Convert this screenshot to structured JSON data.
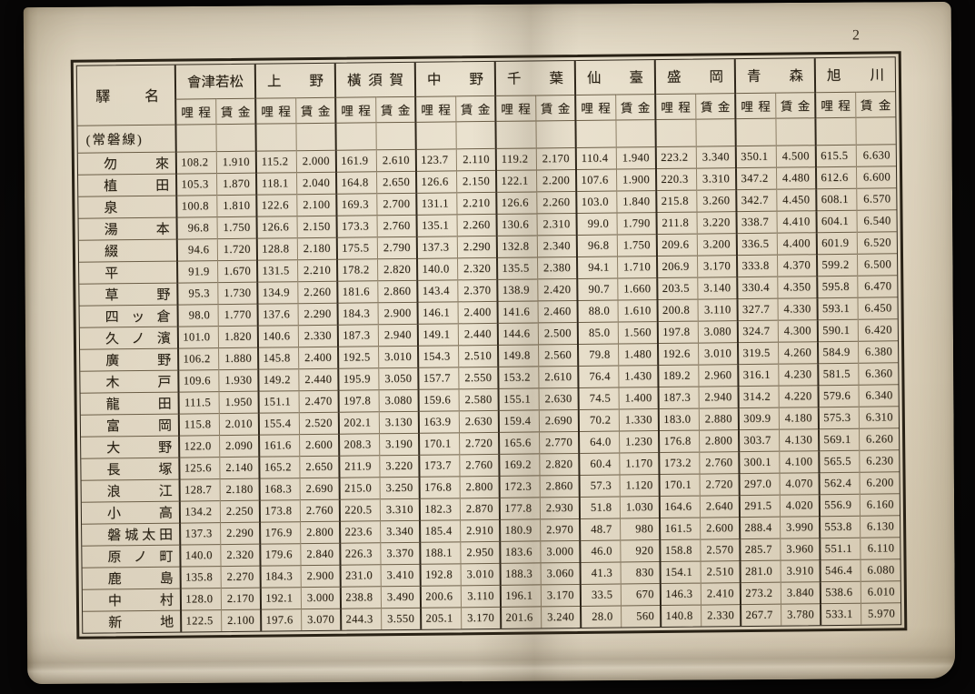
{
  "page_number": "2",
  "table": {
    "station_col_header": "驛名",
    "mileage_label": "哩程",
    "fare_label": "賃金",
    "destinations": [
      "會津若松",
      "上野",
      "橫須賀",
      "中野",
      "千葉",
      "仙臺",
      "盛岡",
      "青森",
      "旭川"
    ],
    "line_section_label": "(常磐線)",
    "rows": [
      {
        "station": "勿來",
        "cells": [
          "108.2",
          "1.910",
          "115.2",
          "2.000",
          "161.9",
          "2.610",
          "123.7",
          "2.110",
          "119.2",
          "2.170",
          "110.4",
          "1.940",
          "223.2",
          "3.340",
          "350.1",
          "4.500",
          "615.5",
          "6.630"
        ]
      },
      {
        "station": "植田",
        "cells": [
          "105.3",
          "1.870",
          "118.1",
          "2.040",
          "164.8",
          "2.650",
          "126.6",
          "2.150",
          "122.1",
          "2.200",
          "107.6",
          "1.900",
          "220.3",
          "3.310",
          "347.2",
          "4.480",
          "612.6",
          "6.600"
        ]
      },
      {
        "station": "泉",
        "cells": [
          "100.8",
          "1.810",
          "122.6",
          "2.100",
          "169.3",
          "2.700",
          "131.1",
          "2.210",
          "126.6",
          "2.260",
          "103.0",
          "1.840",
          "215.8",
          "3.260",
          "342.7",
          "4.450",
          "608.1",
          "6.570"
        ]
      },
      {
        "station": "湯本",
        "cells": [
          "96.8",
          "1.750",
          "126.6",
          "2.150",
          "173.3",
          "2.760",
          "135.1",
          "2.260",
          "130.6",
          "2.310",
          "99.0",
          "1.790",
          "211.8",
          "3.220",
          "338.7",
          "4.410",
          "604.1",
          "6.540"
        ]
      },
      {
        "station": "綴",
        "cells": [
          "94.6",
          "1.720",
          "128.8",
          "2.180",
          "175.5",
          "2.790",
          "137.3",
          "2.290",
          "132.8",
          "2.340",
          "96.8",
          "1.750",
          "209.6",
          "3.200",
          "336.5",
          "4.400",
          "601.9",
          "6.520"
        ]
      },
      {
        "station": "平",
        "cells": [
          "91.9",
          "1.670",
          "131.5",
          "2.210",
          "178.2",
          "2.820",
          "140.0",
          "2.320",
          "135.5",
          "2.380",
          "94.1",
          "1.710",
          "206.9",
          "3.170",
          "333.8",
          "4.370",
          "599.2",
          "6.500"
        ]
      },
      {
        "station": "草野",
        "cells": [
          "95.3",
          "1.730",
          "134.9",
          "2.260",
          "181.6",
          "2.860",
          "143.4",
          "2.370",
          "138.9",
          "2.420",
          "90.7",
          "1.660",
          "203.5",
          "3.140",
          "330.4",
          "4.350",
          "595.8",
          "6.470"
        ]
      },
      {
        "station": "四ッ倉",
        "cells": [
          "98.0",
          "1.770",
          "137.6",
          "2.290",
          "184.3",
          "2.900",
          "146.1",
          "2.400",
          "141.6",
          "2.460",
          "88.0",
          "1.610",
          "200.8",
          "3.110",
          "327.7",
          "4.330",
          "593.1",
          "6.450"
        ]
      },
      {
        "station": "久ノ濱",
        "cells": [
          "101.0",
          "1.820",
          "140.6",
          "2.330",
          "187.3",
          "2.940",
          "149.1",
          "2.440",
          "144.6",
          "2.500",
          "85.0",
          "1.560",
          "197.8",
          "3.080",
          "324.7",
          "4.300",
          "590.1",
          "6.420"
        ]
      },
      {
        "station": "廣野",
        "cells": [
          "106.2",
          "1.880",
          "145.8",
          "2.400",
          "192.5",
          "3.010",
          "154.3",
          "2.510",
          "149.8",
          "2.560",
          "79.8",
          "1.480",
          "192.6",
          "3.010",
          "319.5",
          "4.260",
          "584.9",
          "6.380"
        ]
      },
      {
        "station": "木戸",
        "cells": [
          "109.6",
          "1.930",
          "149.2",
          "2.440",
          "195.9",
          "3.050",
          "157.7",
          "2.550",
          "153.2",
          "2.610",
          "76.4",
          "1.430",
          "189.2",
          "2.960",
          "316.1",
          "4.230",
          "581.5",
          "6.360"
        ]
      },
      {
        "station": "龍田",
        "cells": [
          "111.5",
          "1.950",
          "151.1",
          "2.470",
          "197.8",
          "3.080",
          "159.6",
          "2.580",
          "155.1",
          "2.630",
          "74.5",
          "1.400",
          "187.3",
          "2.940",
          "314.2",
          "4.220",
          "579.6",
          "6.340"
        ]
      },
      {
        "station": "富岡",
        "cells": [
          "115.8",
          "2.010",
          "155.4",
          "2.520",
          "202.1",
          "3.130",
          "163.9",
          "2.630",
          "159.4",
          "2.690",
          "70.2",
          "1.330",
          "183.0",
          "2.880",
          "309.9",
          "4.180",
          "575.3",
          "6.310"
        ]
      },
      {
        "station": "大野",
        "cells": [
          "122.0",
          "2.090",
          "161.6",
          "2.600",
          "208.3",
          "3.190",
          "170.1",
          "2.720",
          "165.6",
          "2.770",
          "64.0",
          "1.230",
          "176.8",
          "2.800",
          "303.7",
          "4.130",
          "569.1",
          "6.260"
        ]
      },
      {
        "station": "長塚",
        "cells": [
          "125.6",
          "2.140",
          "165.2",
          "2.650",
          "211.9",
          "3.220",
          "173.7",
          "2.760",
          "169.2",
          "2.820",
          "60.4",
          "1.170",
          "173.2",
          "2.760",
          "300.1",
          "4.100",
          "565.5",
          "6.230"
        ]
      },
      {
        "station": "浪江",
        "cells": [
          "128.7",
          "2.180",
          "168.3",
          "2.690",
          "215.0",
          "3.250",
          "176.8",
          "2.800",
          "172.3",
          "2.860",
          "57.3",
          "1.120",
          "170.1",
          "2.720",
          "297.0",
          "4.070",
          "562.4",
          "6.200"
        ]
      },
      {
        "station": "小高",
        "cells": [
          "134.2",
          "2.250",
          "173.8",
          "2.760",
          "220.5",
          "3.310",
          "182.3",
          "2.870",
          "177.8",
          "2.930",
          "51.8",
          "1.030",
          "164.6",
          "2.640",
          "291.5",
          "4.020",
          "556.9",
          "6.160"
        ]
      },
      {
        "station": "磐城太田",
        "cells": [
          "137.3",
          "2.290",
          "176.9",
          "2.800",
          "223.6",
          "3.340",
          "185.4",
          "2.910",
          "180.9",
          "2.970",
          "48.7",
          "980",
          "161.5",
          "2.600",
          "288.4",
          "3.990",
          "553.8",
          "6.130"
        ]
      },
      {
        "station": "原ノ町",
        "cells": [
          "140.0",
          "2.320",
          "179.6",
          "2.840",
          "226.3",
          "3.370",
          "188.1",
          "2.950",
          "183.6",
          "3.000",
          "46.0",
          "920",
          "158.8",
          "2.570",
          "285.7",
          "3.960",
          "551.1",
          "6.110"
        ]
      },
      {
        "station": "鹿島",
        "cells": [
          "135.8",
          "2.270",
          "184.3",
          "2.900",
          "231.0",
          "3.410",
          "192.8",
          "3.010",
          "188.3",
          "3.060",
          "41.3",
          "830",
          "154.1",
          "2.510",
          "281.0",
          "3.910",
          "546.4",
          "6.080"
        ]
      },
      {
        "station": "中村",
        "cells": [
          "128.0",
          "2.170",
          "192.1",
          "3.000",
          "238.8",
          "3.490",
          "200.6",
          "3.110",
          "196.1",
          "3.170",
          "33.5",
          "670",
          "146.3",
          "2.410",
          "273.2",
          "3.840",
          "538.6",
          "6.010"
        ]
      },
      {
        "station": "新地",
        "cells": [
          "122.5",
          "2.100",
          "197.6",
          "3.070",
          "244.3",
          "3.550",
          "205.1",
          "3.170",
          "201.6",
          "3.240",
          "28.0",
          "560",
          "140.8",
          "2.330",
          "267.7",
          "3.780",
          "533.1",
          "5.970"
        ]
      }
    ]
  },
  "colors": {
    "paper": "#e6ddc9",
    "ink": "#261f13",
    "background": "#0b0a09"
  }
}
